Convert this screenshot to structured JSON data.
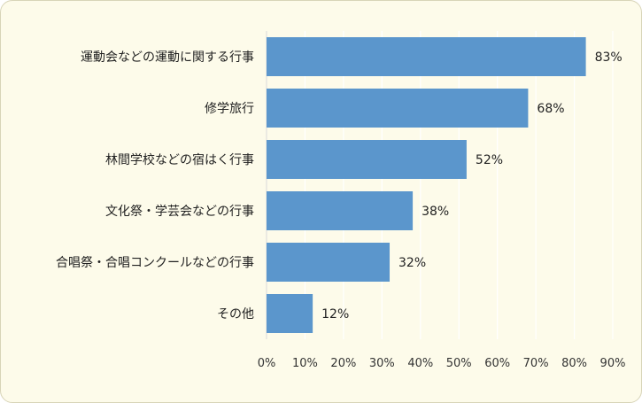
{
  "chart_data": {
    "type": "bar",
    "orientation": "horizontal",
    "categories": [
      "運動会などの運動に関する行事",
      "修学旅行",
      "林間学校などの宿はく行事",
      "文化祭・学芸会などの行事",
      "合唱祭・合唱コンクールなどの行事",
      "その他"
    ],
    "values": [
      83,
      68,
      52,
      38,
      32,
      12
    ],
    "value_labels": [
      "83%",
      "68%",
      "52%",
      "38%",
      "32%",
      "12%"
    ],
    "xlim": [
      0,
      90
    ],
    "xticks": [
      0,
      10,
      20,
      30,
      40,
      50,
      60,
      70,
      80,
      90
    ],
    "xtick_labels": [
      "0%",
      "10%",
      "20%",
      "30%",
      "40%",
      "50%",
      "60%",
      "70%",
      "80%",
      "90%"
    ],
    "grid": "vertical",
    "title": "",
    "xlabel": "",
    "ylabel": "",
    "colors": {
      "bar": "#5b96cc",
      "background": "#fdfbea",
      "grid": "#ffffff"
    }
  }
}
